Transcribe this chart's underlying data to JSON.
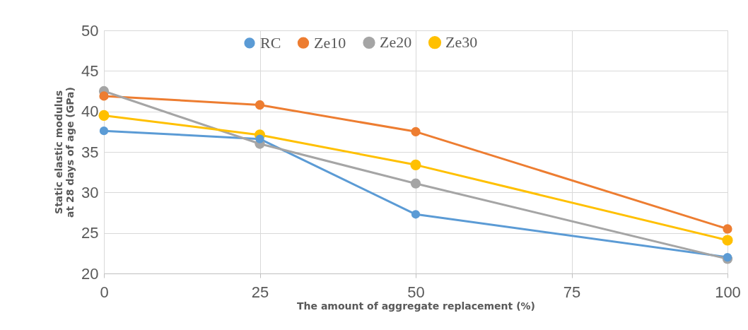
{
  "chart_data": {
    "type": "line",
    "xlabel": "The amount of aggregate replacement (%)",
    "ylabel": "Static elastic modulus at 28 days of age (GPa)",
    "x": [
      0,
      25,
      50,
      100
    ],
    "series": [
      {
        "name": "RC",
        "color": "#5b9bd5",
        "values": [
          37.6,
          36.6,
          27.3,
          22.0
        ]
      },
      {
        "name": "Ze10",
        "color": "#ed7d31",
        "values": [
          41.9,
          40.8,
          37.5,
          25.5
        ]
      },
      {
        "name": "Ze20",
        "color": "#a5a5a5",
        "values": [
          42.5,
          36.0,
          31.1,
          21.8
        ]
      },
      {
        "name": "Ze30",
        "color": "#ffc000",
        "values": [
          39.5,
          37.1,
          33.4,
          24.1
        ]
      }
    ],
    "xlim": [
      0,
      100
    ],
    "xticks": [
      0,
      25,
      50,
      75,
      100
    ],
    "ylim": [
      20,
      50
    ],
    "yticks": [
      20,
      25,
      30,
      35,
      40,
      45,
      50
    ],
    "grid": true,
    "legend": "top",
    "marker": "circle",
    "line_style": "solid"
  }
}
